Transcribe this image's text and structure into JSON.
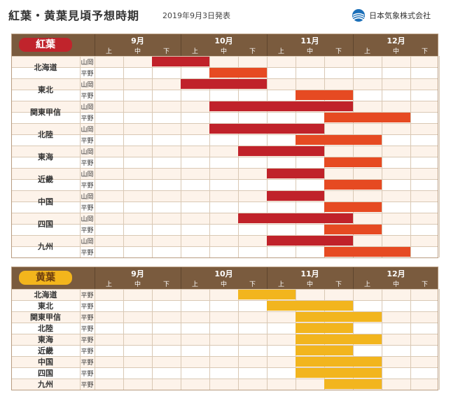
{
  "header": {
    "title": "紅葉・黄葉見頃予想時期",
    "date": "2019年9月3日発表",
    "org": "日本気象株式会社"
  },
  "colors": {
    "red_dark": "#c0222a",
    "red_orange": "#e64a22",
    "yellow": "#f2b51e",
    "header_bg": "#7a5b3e",
    "row_light": "#fdf3ea",
    "row_white": "#ffffff"
  },
  "periods": {
    "months": [
      "9月",
      "10月",
      "11月",
      "12月"
    ],
    "dekads": [
      "上",
      "中",
      "下"
    ]
  },
  "chart_data": [
    {
      "type": "table",
      "title": "紅葉",
      "periods": [
        "9月上",
        "9月中",
        "9月下",
        "10月上",
        "10月中",
        "10月下",
        "11月上",
        "11月中",
        "11月下",
        "12月上",
        "12月中",
        "12月下"
      ],
      "rows": [
        {
          "region": "北海道",
          "site": "山岡",
          "start": "9月下",
          "end": "10月上",
          "bands": [
            {
              "from": 2,
              "to": 3,
              "tone": "dark"
            }
          ]
        },
        {
          "region": "北海道",
          "site": "平野",
          "start": "10月中",
          "end": "10月下",
          "bands": [
            {
              "from": 4,
              "to": 5,
              "tone": "orange"
            }
          ]
        },
        {
          "region": "東北",
          "site": "山岡",
          "start": "10月上",
          "end": "10月下",
          "bands": [
            {
              "from": 3,
              "to": 5,
              "tone": "dark"
            }
          ]
        },
        {
          "region": "東北",
          "site": "平野",
          "start": "11月中",
          "end": "11月下",
          "bands": [
            {
              "from": 7,
              "to": 8,
              "tone": "orange"
            }
          ]
        },
        {
          "region": "関東甲信",
          "site": "山岡",
          "start": "10月中",
          "end": "11月下",
          "bands": [
            {
              "from": 4,
              "to": 8,
              "tone": "dark"
            }
          ]
        },
        {
          "region": "関東甲信",
          "site": "平野",
          "start": "11月下",
          "end": "12月中",
          "bands": [
            {
              "from": 8,
              "to": 10,
              "tone": "orange"
            }
          ]
        },
        {
          "region": "北陸",
          "site": "山岡",
          "start": "10月中",
          "end": "11月中",
          "bands": [
            {
              "from": 4,
              "to": 7,
              "tone": "dark"
            }
          ]
        },
        {
          "region": "北陸",
          "site": "平野",
          "start": "11月中",
          "end": "12月上",
          "bands": [
            {
              "from": 7,
              "to": 9,
              "tone": "orange"
            }
          ]
        },
        {
          "region": "東海",
          "site": "山岡",
          "start": "10月下",
          "end": "11月中",
          "bands": [
            {
              "from": 5,
              "to": 7,
              "tone": "dark"
            }
          ]
        },
        {
          "region": "東海",
          "site": "平野",
          "start": "11月下",
          "end": "12月上",
          "bands": [
            {
              "from": 8,
              "to": 9,
              "tone": "orange"
            }
          ]
        },
        {
          "region": "近畿",
          "site": "山岡",
          "start": "11月上",
          "end": "11月中",
          "bands": [
            {
              "from": 6,
              "to": 7,
              "tone": "dark"
            }
          ]
        },
        {
          "region": "近畿",
          "site": "平野",
          "start": "11月下",
          "end": "12月上",
          "bands": [
            {
              "from": 8,
              "to": 9,
              "tone": "orange"
            }
          ]
        },
        {
          "region": "中国",
          "site": "山岡",
          "start": "11月上",
          "end": "11月中",
          "bands": [
            {
              "from": 6,
              "to": 7,
              "tone": "dark"
            }
          ]
        },
        {
          "region": "中国",
          "site": "平野",
          "start": "11月下",
          "end": "12月上",
          "bands": [
            {
              "from": 8,
              "to": 9,
              "tone": "orange"
            }
          ]
        },
        {
          "region": "四国",
          "site": "山岡",
          "start": "10月下",
          "end": "11月下",
          "bands": [
            {
              "from": 5,
              "to": 8,
              "tone": "dark"
            }
          ]
        },
        {
          "region": "四国",
          "site": "平野",
          "start": "11月下",
          "end": "12月上",
          "bands": [
            {
              "from": 8,
              "to": 9,
              "tone": "orange"
            }
          ]
        },
        {
          "region": "九州",
          "site": "山岡",
          "start": "11月上",
          "end": "11月下",
          "bands": [
            {
              "from": 6,
              "to": 8,
              "tone": "dark"
            }
          ]
        },
        {
          "region": "九州",
          "site": "平野",
          "start": "11月下",
          "end": "12月中",
          "bands": [
            {
              "from": 8,
              "to": 10,
              "tone": "orange"
            }
          ]
        }
      ]
    },
    {
      "type": "table",
      "title": "黄葉",
      "periods": [
        "9月上",
        "9月中",
        "9月下",
        "10月上",
        "10月中",
        "10月下",
        "11月上",
        "11月中",
        "11月下",
        "12月上",
        "12月中",
        "12月下"
      ],
      "rows": [
        {
          "region": "北海道",
          "site": "平野",
          "start": "10月下",
          "end": "11月上",
          "bands": [
            {
              "from": 5,
              "to": 6,
              "tone": "yellow"
            }
          ]
        },
        {
          "region": "東北",
          "site": "平野",
          "start": "11月上",
          "end": "11月下",
          "bands": [
            {
              "from": 6,
              "to": 8,
              "tone": "yellow"
            }
          ]
        },
        {
          "region": "関東甲信",
          "site": "平野",
          "start": "11月中",
          "end": "12月上",
          "bands": [
            {
              "from": 7,
              "to": 9,
              "tone": "yellow"
            }
          ]
        },
        {
          "region": "北陸",
          "site": "平野",
          "start": "11月中",
          "end": "11月下",
          "bands": [
            {
              "from": 7,
              "to": 8,
              "tone": "yellow"
            }
          ]
        },
        {
          "region": "東海",
          "site": "平野",
          "start": "11月中",
          "end": "12月上",
          "bands": [
            {
              "from": 7,
              "to": 9,
              "tone": "yellow"
            }
          ]
        },
        {
          "region": "近畿",
          "site": "平野",
          "start": "11月中",
          "end": "11月下",
          "bands": [
            {
              "from": 7,
              "to": 8,
              "tone": "yellow"
            }
          ]
        },
        {
          "region": "中国",
          "site": "平野",
          "start": "11月中",
          "end": "12月上",
          "bands": [
            {
              "from": 7,
              "to": 9,
              "tone": "yellow"
            }
          ]
        },
        {
          "region": "四国",
          "site": "平野",
          "start": "11月中",
          "end": "12月上",
          "bands": [
            {
              "from": 7,
              "to": 9,
              "tone": "yellow"
            }
          ]
        },
        {
          "region": "九州",
          "site": "平野",
          "start": "11月下",
          "end": "12月上",
          "bands": [
            {
              "from": 8,
              "to": 9,
              "tone": "yellow"
            }
          ]
        }
      ]
    }
  ]
}
